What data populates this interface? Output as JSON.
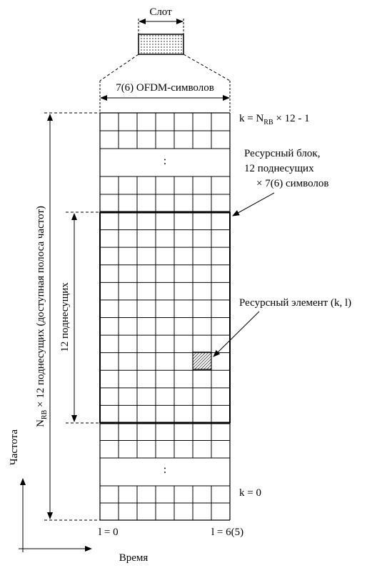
{
  "slot_label": "Слот",
  "symbols_label": "7(6) OFDM-символов",
  "k_top": {
    "prefix": "k = N",
    "sub": "RB",
    "suffix": " × 12 - 1"
  },
  "resource_block": {
    "line1": "Ресурсный блок,",
    "line2": "12 поднесущих",
    "line3": "× 7(6) символов"
  },
  "resource_element_label": "Ресурсный элемент (k, l)",
  "subcarriers_12": "12 поднесущих",
  "bandwidth": {
    "prefix": "N",
    "sub": "RB",
    "suffix": " × 12 поднесущих (доступная полоса частот)"
  },
  "k_bottom": "k = 0",
  "l_start": "l = 0",
  "l_end": "l = 6(5)",
  "frequency_axis": "Частота",
  "time_axis": "Время",
  "ellipsis": ":"
}
